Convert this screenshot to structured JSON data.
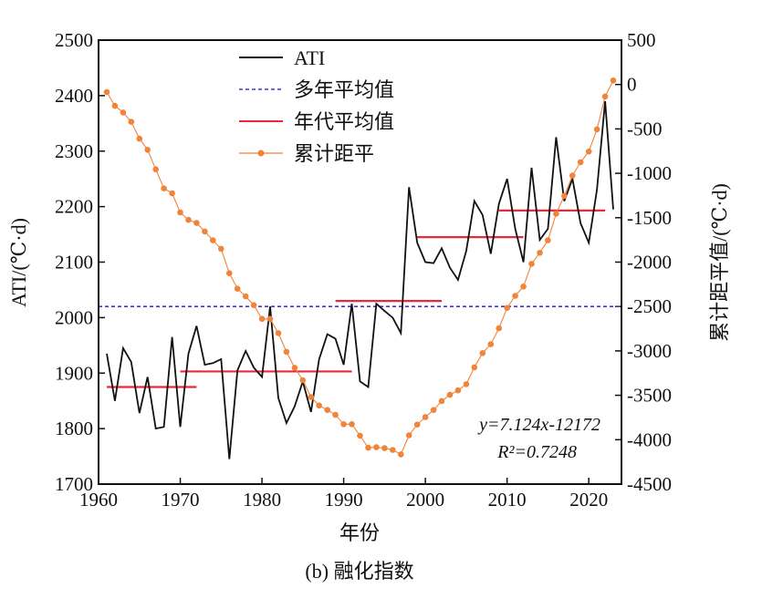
{
  "chart_data": {
    "type": "line",
    "x": [
      1961,
      1962,
      1963,
      1964,
      1965,
      1966,
      1967,
      1968,
      1969,
      1970,
      1971,
      1972,
      1973,
      1974,
      1975,
      1976,
      1977,
      1978,
      1979,
      1980,
      1981,
      1982,
      1983,
      1984,
      1985,
      1986,
      1987,
      1988,
      1989,
      1990,
      1991,
      1992,
      1993,
      1994,
      1995,
      1996,
      1997,
      1998,
      1999,
      2000,
      2001,
      2002,
      2003,
      2004,
      2005,
      2006,
      2007,
      2008,
      2009,
      2010,
      2011,
      2012,
      2013,
      2014,
      2015,
      2016,
      2017,
      2018,
      2019,
      2020,
      2021,
      2022,
      2023
    ],
    "series": [
      {
        "name": "ATI",
        "axis": "left",
        "color": "#111111",
        "values": [
          1935,
          1850,
          1945,
          1920,
          1828,
          1893,
          1800,
          1803,
          1965,
          1803,
          1935,
          1985,
          1915,
          1918,
          1925,
          1745,
          1905,
          1940,
          1910,
          1893,
          2020,
          1855,
          1810,
          1840,
          1885,
          1830,
          1925,
          1970,
          1962,
          1915,
          2025,
          1885,
          1875,
          2025,
          2012,
          2000,
          1972,
          2235,
          2135,
          2100,
          2098,
          2125,
          2090,
          2068,
          2120,
          2210,
          2185,
          2115,
          2205,
          2250,
          2160,
          2100,
          2270,
          2140,
          2160,
          2325,
          2210,
          2250,
          2170,
          2135,
          2230,
          2390,
          2195
        ]
      },
      {
        "name": "累计距平",
        "axis": "right",
        "color": "#f0843a",
        "values": [
          -85,
          -240,
          -315,
          -420,
          -610,
          -735,
          -955,
          -1170,
          -1225,
          -1440,
          -1525,
          -1560,
          -1655,
          -1755,
          -1850,
          -2125,
          -2300,
          -2385,
          -2485,
          -2640,
          -2640,
          -2800,
          -3010,
          -3190,
          -3330,
          -3520,
          -3615,
          -3665,
          -3720,
          -3825,
          -3825,
          -3955,
          -4090,
          -4085,
          -4095,
          -4115,
          -4165,
          -3950,
          -3830,
          -3745,
          -3665,
          -3565,
          -3495,
          -3445,
          -3375,
          -3185,
          -3025,
          -2925,
          -2745,
          -2515,
          -2380,
          -2275,
          -2020,
          -1895,
          -1755,
          -1455,
          -1255,
          -1025,
          -875,
          -755,
          -505,
          -135,
          45
        ]
      }
    ],
    "hlines": [
      {
        "name": "多年平均值",
        "axis": "left",
        "color": "#3a3ad6",
        "dashed": true,
        "value": 2020
      },
      {
        "name": "年代平均值",
        "axis": "left",
        "color": "#e8283c",
        "segments": [
          {
            "x0": 1961,
            "x1": 1972,
            "y": 1875
          },
          {
            "x0": 1970,
            "x1": 1991,
            "y": 1903
          },
          {
            "x0": 1989,
            "x1": 2002,
            "y": 2030
          },
          {
            "x0": 1999,
            "x1": 2012,
            "y": 2145
          },
          {
            "x0": 2009,
            "x1": 2022,
            "y": 2193
          }
        ]
      }
    ],
    "legend": [
      "ATI",
      "多年平均值",
      "年代平均值",
      "累计距平"
    ],
    "legend_position": "top-center",
    "xlim": [
      1960,
      2024
    ],
    "xticks": [
      "1960",
      "1970",
      "1980",
      "1990",
      "2000",
      "2010",
      "2020"
    ],
    "ylim_left": [
      1700,
      2500
    ],
    "yticks_left": [
      "1700",
      "1800",
      "1900",
      "2000",
      "2100",
      "2200",
      "2300",
      "2400",
      "2500"
    ],
    "ylim_right": [
      -4500,
      500
    ],
    "yticks_right": [
      "-4500",
      "-4000",
      "-3500",
      "-3000",
      "-2500",
      "-2000",
      "-1500",
      "-1000",
      "-500",
      "0",
      "500"
    ],
    "xlabel": "年份",
    "ylabel_left": "ATI/(℃·d)",
    "ylabel_right": "累计距平值/(℃·d)",
    "annotation_eq": "y=7.124x-12172",
    "annotation_r2": "R²=0.7248",
    "caption": "(b) 融化指数"
  }
}
